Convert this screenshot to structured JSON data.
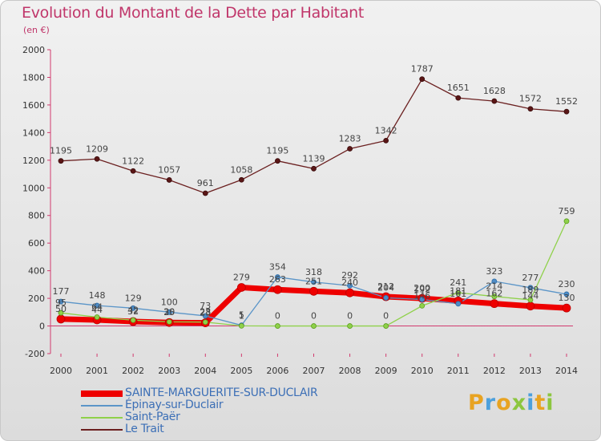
{
  "header": {
    "title": "Evolution du Montant de la Dette par Habitant",
    "unit": "(en €)"
  },
  "logo": {
    "text": "Proxiti"
  },
  "chart_data": {
    "type": "line",
    "title": "Evolution du Montant de la Dette par Habitant",
    "ylabel": "(en €)",
    "xlabel": "",
    "x": [
      2000,
      2001,
      2002,
      2003,
      2004,
      2005,
      2006,
      2007,
      2008,
      2009,
      2010,
      2011,
      2012,
      2013,
      2014
    ],
    "ylim": [
      -200,
      2000
    ],
    "yticks": [
      -200,
      0,
      200,
      400,
      600,
      800,
      1000,
      1200,
      1400,
      1600,
      1800,
      2000
    ],
    "grid": false,
    "legend": "bottom-left",
    "series": [
      {
        "name": "SAINTE-MARGUERITE-SUR-DUCLAIR",
        "color": "#ee0000",
        "values": [
          50,
          44,
          32,
          25,
          23,
          279,
          263,
          251,
          240,
          212,
          200,
          181,
          162,
          144,
          130
        ]
      },
      {
        "name": "Épinay-sur-Duclair",
        "color": "#5b95c8",
        "values": [
          177,
          148,
          129,
          100,
          73,
          5,
          354,
          318,
          292,
          204,
          192,
          161,
          323,
          277,
          230
        ]
      },
      {
        "name": "Saint-Paër",
        "color": "#8fd14a",
        "values": [
          95,
          64,
          42,
          30,
          28,
          1,
          0,
          0,
          0,
          0,
          146,
          241,
          214,
          189,
          759
        ]
      },
      {
        "name": "Le Trait",
        "color": "#6b2020",
        "values": [
          1195,
          1209,
          1122,
          1057,
          961,
          1058,
          1195,
          1139,
          1283,
          1342,
          1787,
          1651,
          1628,
          1572,
          1552
        ]
      }
    ],
    "data_labels": {
      "SAINTE-MARGUERITE-SUR-DUCLAIR": [
        "50",
        "44",
        "32",
        "25",
        "23",
        "279",
        "263",
        "251",
        "240",
        "212",
        "200",
        "181",
        "162",
        "144",
        "130"
      ],
      "Épinay-sur-Duclair": [
        "177",
        "148",
        "129",
        "100",
        "73",
        "5",
        "354",
        "318",
        "292",
        "204",
        "192",
        "161",
        "323",
        "277",
        "230"
      ],
      "Saint-Paër": [
        "95",
        "64",
        "42",
        "30",
        "28",
        "1",
        "0",
        "0",
        "0",
        "0",
        "146",
        "241",
        "214",
        "189",
        "759"
      ],
      "Le Trait": [
        "1195",
        "1209",
        "1122",
        "1057",
        "961",
        "1058",
        "1195",
        "1139",
        "1283",
        "1342",
        "1787",
        "1651",
        "1628",
        "1572",
        "1552"
      ]
    }
  }
}
